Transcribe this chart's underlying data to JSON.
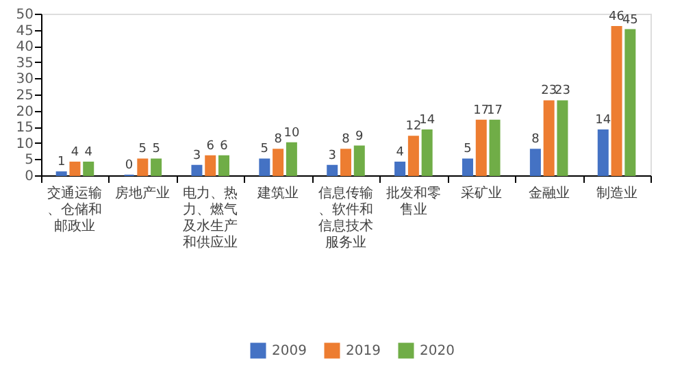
{
  "chart_data": {
    "type": "bar",
    "categories": [
      "交通运输、仓储和邮政业",
      "房地产业",
      "电力、热力、燃气及水生产和供应业",
      "建筑业",
      "信息传输、软件和信息技术服务业",
      "批发和零售业",
      "采矿业",
      "金融业",
      "制造业"
    ],
    "series": [
      {
        "name": "2009",
        "color": "#4472c4",
        "values": [
          1,
          0,
          3,
          5,
          3,
          4,
          5,
          8,
          14
        ]
      },
      {
        "name": "2019",
        "color": "#ed7d31",
        "values": [
          4,
          5,
          6,
          8,
          8,
          12,
          17,
          23,
          46
        ]
      },
      {
        "name": "2020",
        "color": "#70ad47",
        "values": [
          4,
          5,
          6,
          10,
          9,
          14,
          17,
          23,
          45
        ]
      }
    ],
    "ylim": [
      0,
      50
    ],
    "yticks": [
      0,
      5,
      10,
      15,
      20,
      25,
      30,
      35,
      40,
      45,
      50
    ],
    "data_labels": true,
    "grid": false,
    "legend": "bottom"
  }
}
